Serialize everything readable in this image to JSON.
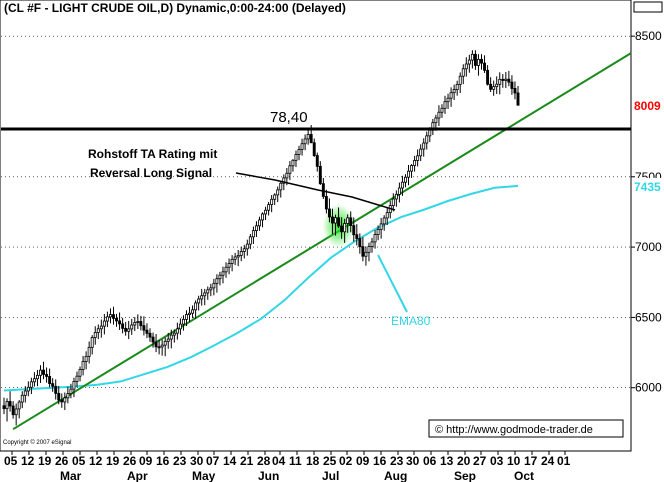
{
  "header": {
    "title": "(CL #F - LIGHT CRUDE OIL,D) Dynamic,0:00-24:00 (Delayed)"
  },
  "copyright": "Copyright © 2007 eSignal",
  "source_box": "© http://www.godmode-trader.de",
  "colors": {
    "candle_up": "#ffffff",
    "candle_down": "#000000",
    "ema": "#33d6e6",
    "trendline": "#1a8a1a",
    "resistance": "#000000",
    "last_price_badge": "#ff0000",
    "ema_badge": "#33d6e6",
    "signal_glow": "#22e022"
  },
  "chart_data": {
    "type": "candlestick",
    "ylim": [
      5550,
      8750
    ],
    "y_ticks": [
      {
        "value": 8500,
        "label": "8500"
      },
      {
        "value": 7500,
        "label": "7500"
      },
      {
        "value": 7000,
        "label": "7000"
      },
      {
        "value": 6500,
        "label": "6500"
      },
      {
        "value": 6000,
        "label": "6000"
      }
    ],
    "badges": [
      {
        "value": 8009,
        "label": "8009",
        "kind": "last_price"
      },
      {
        "value": 7435,
        "label": "7435",
        "kind": "ema"
      }
    ],
    "x_day_labels": [
      "05",
      "12",
      "19",
      "26",
      "05",
      "12",
      "19",
      "26",
      "09",
      "16",
      "23",
      "30",
      "07",
      "14",
      "21",
      "28",
      "04",
      "11",
      "18",
      "25",
      "02",
      "09",
      "16",
      "23",
      "30",
      "06",
      "13",
      "20",
      "27",
      "03",
      "10",
      "17",
      "24",
      "01"
    ],
    "x_month_labels": [
      "Mar",
      "Apr",
      "May",
      "Jun",
      "Jul",
      "Aug",
      "Sep",
      "Oct"
    ],
    "candles": [
      [
        5872,
        5930,
        5812,
        5851
      ],
      [
        5851,
        5925,
        5760,
        5902
      ],
      [
        5902,
        5975,
        5830,
        5870
      ],
      [
        5870,
        5905,
        5780,
        5808
      ],
      [
        5808,
        5888,
        5732,
        5849
      ],
      [
        5849,
        5912,
        5782,
        5898
      ],
      [
        5898,
        5975,
        5855,
        5946
      ],
      [
        5946,
        6011,
        5895,
        5977
      ],
      [
        5977,
        6045,
        5939,
        6003
      ],
      [
        6003,
        6071,
        5955,
        6042
      ],
      [
        6042,
        6111,
        6008,
        6064
      ],
      [
        6064,
        6126,
        6011,
        6088
      ],
      [
        6088,
        6160,
        6034,
        6125
      ],
      [
        6125,
        6185,
        6060,
        6094
      ],
      [
        6094,
        6144,
        6036,
        6080
      ],
      [
        6080,
        6136,
        6002,
        6029
      ],
      [
        6029,
        6068,
        5971,
        6010
      ],
      [
        6010,
        6059,
        5916,
        5960
      ],
      [
        5960,
        6013,
        5883,
        5912
      ],
      [
        5912,
        5959,
        5857,
        5899
      ],
      [
        5899,
        5966,
        5841,
        5928
      ],
      [
        5928,
        6007,
        5889,
        5958
      ],
      [
        5958,
        6028,
        5925,
        5990
      ],
      [
        5990,
        6071,
        5933,
        6045
      ],
      [
        6045,
        6115,
        6007,
        6082
      ],
      [
        6082,
        6151,
        6045,
        6130
      ],
      [
        6130,
        6226,
        6088,
        6186
      ],
      [
        6186,
        6259,
        6131,
        6223
      ],
      [
        6223,
        6329,
        6172,
        6287
      ],
      [
        6287,
        6374,
        6237,
        6357
      ],
      [
        6357,
        6437,
        6306,
        6393
      ],
      [
        6393,
        6450,
        6346,
        6419
      ],
      [
        6419,
        6485,
        6356,
        6438
      ],
      [
        6438,
        6524,
        6379,
        6474
      ],
      [
        6474,
        6541,
        6431,
        6504
      ],
      [
        6504,
        6564,
        6458,
        6520
      ],
      [
        6520,
        6576,
        6449,
        6493
      ],
      [
        6493,
        6525,
        6433,
        6475
      ],
      [
        6475,
        6535,
        6411,
        6454
      ],
      [
        6454,
        6497,
        6387,
        6422
      ],
      [
        6422,
        6468,
        6370,
        6401
      ],
      [
        6401,
        6475,
        6346,
        6418
      ],
      [
        6418,
        6490,
        6376,
        6446
      ],
      [
        6446,
        6502,
        6403,
        6464
      ],
      [
        6464,
        6522,
        6418,
        6471
      ],
      [
        6471,
        6511,
        6408,
        6441
      ],
      [
        6441,
        6508,
        6372,
        6409
      ],
      [
        6409,
        6458,
        6353,
        6387
      ],
      [
        6387,
        6423,
        6326,
        6360
      ],
      [
        6360,
        6392,
        6285,
        6325
      ],
      [
        6325,
        6382,
        6253,
        6291
      ],
      [
        6291,
        6340,
        6237,
        6290
      ],
      [
        6290,
        6343,
        6228,
        6303
      ],
      [
        6303,
        6357,
        6224,
        6330
      ],
      [
        6330,
        6390,
        6277,
        6346
      ],
      [
        6346,
        6413,
        6280,
        6374
      ],
      [
        6374,
        6415,
        6321,
        6388
      ],
      [
        6388,
        6463,
        6342,
        6419
      ],
      [
        6419,
        6493,
        6376,
        6452
      ],
      [
        6452,
        6515,
        6406,
        6486
      ],
      [
        6486,
        6550,
        6439,
        6520
      ],
      [
        6520,
        6575,
        6467,
        6530
      ],
      [
        6530,
        6585,
        6494,
        6554
      ],
      [
        6554,
        6621,
        6490,
        6603
      ],
      [
        6603,
        6654,
        6549,
        6631
      ],
      [
        6631,
        6703,
        6584,
        6654
      ],
      [
        6654,
        6703,
        6587,
        6674
      ],
      [
        6674,
        6720,
        6625,
        6696
      ],
      [
        6696,
        6739,
        6651,
        6710
      ],
      [
        6710,
        6774,
        6657,
        6742
      ],
      [
        6742,
        6807,
        6676,
        6775
      ],
      [
        6775,
        6824,
        6728,
        6800
      ],
      [
        6800,
        6861,
        6742,
        6824
      ],
      [
        6824,
        6892,
        6782,
        6857
      ],
      [
        6857,
        6919,
        6807,
        6883
      ],
      [
        6883,
        6943,
        6828,
        6913
      ],
      [
        6913,
        6959,
        6872,
        6930
      ],
      [
        6930,
        6980,
        6865,
        6941
      ],
      [
        6941,
        7003,
        6900,
        6969
      ],
      [
        6969,
        7016,
        6919,
        6988
      ],
      [
        6988,
        7053,
        6939,
        7021
      ],
      [
        7021,
        7093,
        6985,
        7073
      ],
      [
        7073,
        7146,
        7022,
        7117
      ],
      [
        7117,
        7184,
        7072,
        7151
      ],
      [
        7151,
        7216,
        7116,
        7193
      ],
      [
        7193,
        7247,
        7141,
        7236
      ],
      [
        7236,
        7287,
        7192,
        7262
      ],
      [
        7262,
        7321,
        7225,
        7302
      ],
      [
        7302,
        7370,
        7248,
        7340
      ],
      [
        7340,
        7383,
        7299,
        7371
      ],
      [
        7371,
        7431,
        7320,
        7407
      ],
      [
        7407,
        7473,
        7352,
        7454
      ],
      [
        7454,
        7517,
        7405,
        7492
      ],
      [
        7492,
        7562,
        7440,
        7525
      ],
      [
        7525,
        7612,
        7476,
        7578
      ],
      [
        7578,
        7626,
        7537,
        7617
      ],
      [
        7617,
        7686,
        7569,
        7659
      ],
      [
        7659,
        7720,
        7618,
        7694
      ],
      [
        7694,
        7771,
        7651,
        7735
      ],
      [
        7735,
        7801,
        7689,
        7769
      ],
      [
        7769,
        7844,
        7728,
        7801
      ],
      [
        7801,
        7868,
        7739,
        7742
      ],
      [
        7742,
        7772,
        7641,
        7651
      ],
      [
        7651,
        7672,
        7537,
        7574
      ],
      [
        7574,
        7611,
        7442,
        7451
      ],
      [
        7451,
        7491,
        7342,
        7360
      ],
      [
        7360,
        7408,
        7239,
        7271
      ],
      [
        7271,
        7346,
        7176,
        7214
      ],
      [
        7214,
        7273,
        7091,
        7171
      ],
      [
        7171,
        7231,
        7082,
        7209
      ],
      [
        7209,
        7282,
        7136,
        7150
      ],
      [
        7150,
        7212,
        7059,
        7109
      ],
      [
        7109,
        7201,
        7030,
        7168
      ],
      [
        7168,
        7233,
        7101,
        7208
      ],
      [
        7208,
        7254,
        7105,
        7153
      ],
      [
        7153,
        7211,
        7039,
        7088
      ],
      [
        7088,
        7163,
        7012,
        7061
      ],
      [
        7061,
        7098,
        6953,
        7003
      ],
      [
        7003,
        7071,
        6899,
        6935
      ],
      [
        6935,
        7004,
        6868,
        6963
      ],
      [
        6963,
        7031,
        6899,
        7004
      ],
      [
        7004,
        7066,
        6960,
        7037
      ],
      [
        7037,
        7121,
        6989,
        7089
      ],
      [
        7089,
        7154,
        7049,
        7126
      ],
      [
        7126,
        7207,
        7060,
        7165
      ],
      [
        7165,
        7227,
        7116,
        7207
      ],
      [
        7207,
        7283,
        7157,
        7245
      ],
      [
        7245,
        7328,
        7204,
        7295
      ],
      [
        7295,
        7383,
        7254,
        7342
      ],
      [
        7342,
        7403,
        7287,
        7375
      ],
      [
        7375,
        7459,
        7317,
        7420
      ],
      [
        7420,
        7507,
        7364,
        7461
      ],
      [
        7461,
        7519,
        7425,
        7497
      ],
      [
        7497,
        7584,
        7440,
        7540
      ],
      [
        7540,
        7590,
        7492,
        7580
      ],
      [
        7580,
        7649,
        7537,
        7616
      ],
      [
        7616,
        7694,
        7573,
        7649
      ],
      [
        7649,
        7731,
        7612,
        7697
      ],
      [
        7697,
        7774,
        7643,
        7740
      ],
      [
        7740,
        7821,
        7694,
        7791
      ],
      [
        7791,
        7853,
        7747,
        7831
      ],
      [
        7831,
        7911,
        7797,
        7885
      ],
      [
        7885,
        7941,
        7827,
        7918
      ],
      [
        7918,
        8009,
        7861,
        7959
      ],
      [
        7959,
        8016,
        7919,
        7987
      ],
      [
        7987,
        8076,
        7947,
        8034
      ],
      [
        8034,
        8091,
        7982,
        8059
      ],
      [
        8059,
        8136,
        7997,
        8098
      ],
      [
        8098,
        8155,
        8046,
        8120
      ],
      [
        8120,
        8183,
        8077,
        8157
      ],
      [
        8157,
        8242,
        8096,
        8215
      ],
      [
        8215,
        8300,
        8159,
        8268
      ],
      [
        8268,
        8350,
        8212,
        8302
      ],
      [
        8302,
        8368,
        8240,
        8330
      ],
      [
        8330,
        8400,
        8270,
        8371
      ],
      [
        8371,
        8400,
        8260,
        8292
      ],
      [
        8292,
        8372,
        8219,
        8335
      ],
      [
        8335,
        8372,
        8262,
        8308
      ],
      [
        8308,
        8364,
        8238,
        8257
      ],
      [
        8257,
        8294,
        8149,
        8158
      ],
      [
        8158,
        8208,
        8103,
        8122
      ],
      [
        8122,
        8184,
        8076,
        8141
      ],
      [
        8141,
        8214,
        8089,
        8158
      ],
      [
        8158,
        8243,
        8086,
        8193
      ],
      [
        8193,
        8231,
        8133,
        8185
      ],
      [
        8185,
        8245,
        8131,
        8194
      ],
      [
        8194,
        8253,
        8144,
        8173
      ],
      [
        8173,
        8222,
        8083,
        8128
      ],
      [
        8128,
        8178,
        8051,
        8096
      ],
      [
        8096,
        8146,
        8006,
        8009
      ]
    ],
    "ema_line": [
      5980,
      5990,
      5999,
      6008,
      6021,
      6045,
      6096,
      6148,
      6217,
      6301,
      6390,
      6490,
      6622,
      6778,
      6925,
      7040,
      7138,
      7213,
      7267,
      7328,
      7378,
      7422,
      7435
    ],
    "resistance_level": 7840,
    "resistance_label": "78,40",
    "trendline": [
      [
        3,
        5705
      ],
      [
        150,
        7640
      ]
    ],
    "annotations": [
      {
        "text_lines": [
          "Rohstoff TA Rating mit",
          "Reversal Long Signal"
        ]
      },
      {
        "text_lines": [
          "EMA80"
        ]
      }
    ]
  }
}
